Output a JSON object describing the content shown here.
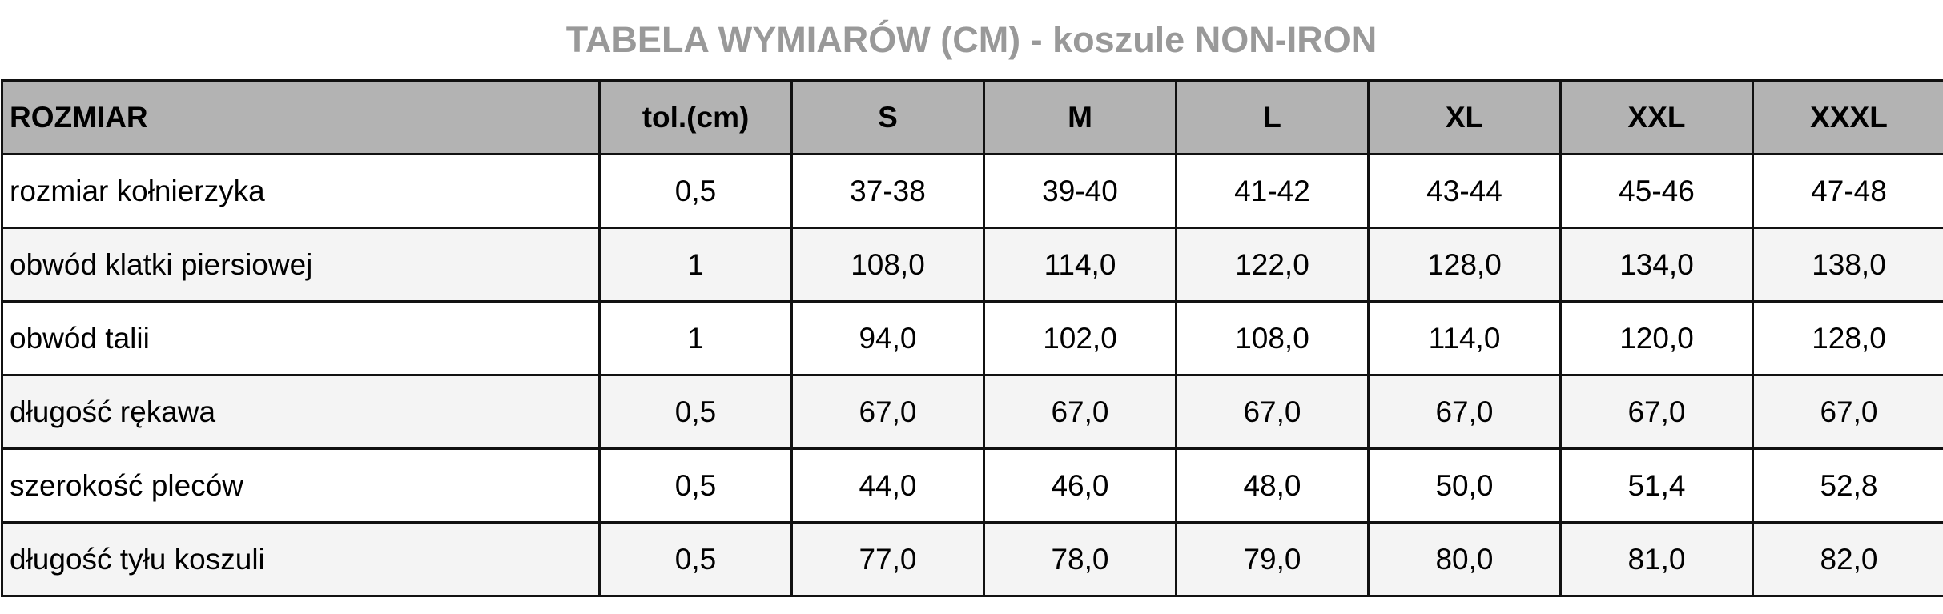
{
  "header": {
    "title": "TABELA WYMIARÓW (CM) - koszule NON-IRON"
  },
  "table": {
    "columns": [
      "ROZMIAR",
      "tol.(cm)",
      "S",
      "M",
      "L",
      "XL",
      "XXL",
      "XXXL"
    ],
    "rows": [
      [
        "rozmiar kołnierzyka",
        "0,5",
        "37-38",
        "39-40",
        "41-42",
        "43-44",
        "45-46",
        "47-48"
      ],
      [
        "obwód klatki piersiowej",
        "1",
        "108,0",
        "114,0",
        "122,0",
        "128,0",
        "134,0",
        "138,0"
      ],
      [
        "obwód talii",
        "1",
        "94,0",
        "102,0",
        "108,0",
        "114,0",
        "120,0",
        "128,0"
      ],
      [
        "długość rękawa",
        "0,5",
        "67,0",
        "67,0",
        "67,0",
        "67,0",
        "67,0",
        "67,0"
      ],
      [
        "szerokość pleców",
        "0,5",
        "44,0",
        "46,0",
        "48,0",
        "50,0",
        "51,4",
        "52,8"
      ],
      [
        "długość tyłu koszuli",
        "0,5",
        "77,0",
        "78,0",
        "79,0",
        "80,0",
        "81,0",
        "82,0"
      ]
    ]
  }
}
